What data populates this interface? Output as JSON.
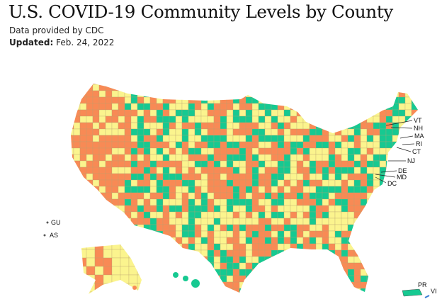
{
  "header": {
    "title": "U.S. COVID-19 Community Levels by County",
    "source": "Data provided by CDC",
    "updated_label": "Updated:",
    "updated_value": "Feb. 24, 2022"
  },
  "levels": [
    {
      "color": "#16c991"
    },
    {
      "color": "#fbf48e"
    },
    {
      "color": "#f88a55"
    }
  ],
  "state_labels": [
    "VT",
    "NH",
    "MA",
    "RI",
    "CT",
    "NJ",
    "DE",
    "MD",
    "DC"
  ],
  "territory_labels": [
    "GU",
    "AS",
    "PR",
    "VI"
  ]
}
